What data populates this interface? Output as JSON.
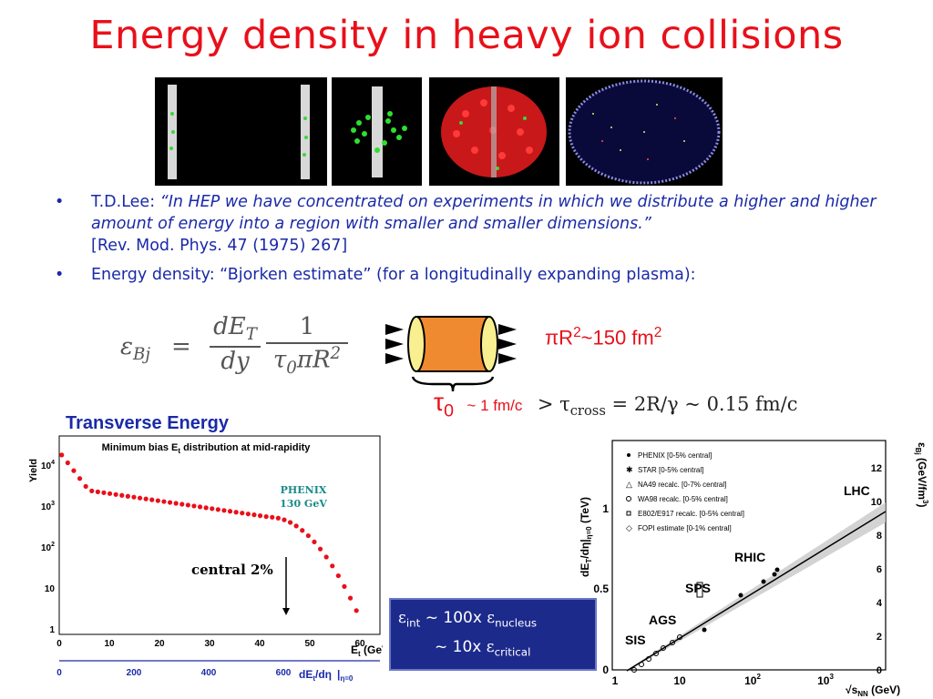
{
  "title": "Energy density in heavy ion collisions",
  "bullets": {
    "b1_prefix": "T.D.Lee: ",
    "b1_quote": "“In HEP we have concentrated on experiments in which we distribute a higher and higher amount of energy into a region with smaller and smaller dimensions.”",
    "b1_ref": "[Rev. Mod. Phys. 47 (1975) 267]",
    "b2": "Energy density: “Bjorken estimate” (for a longitudinally expanding plasma):"
  },
  "bullet_char": "•",
  "formula": {
    "lhs": "ε",
    "lhs_sub": "Bj",
    "eq": "=",
    "num1": "dE",
    "num1_sub": "T",
    "den1": "dy",
    "num2": "1",
    "den2": "τ",
    "den2_sub": "0",
    "den2_rest": "πR",
    "den2_sup": "2"
  },
  "cylinder": {
    "area_prefix": "πR",
    "area_sup": "2",
    "area_rest": "~150 fm",
    "area_sup2": "2",
    "tau": "τ",
    "tau_sub": "0",
    "tau_val": "~ 1 fm/c",
    "cross_gt": "> τ",
    "cross_sub": "cross",
    "cross_rest": " = 2R/γ ~ 0.15 fm/c"
  },
  "left_plot": {
    "section_label": "Transverse Energy",
    "plot_title": "Minimum bias E",
    "plot_title_sub": "t",
    "plot_title_rest": " distribution at mid-rapidity",
    "ylabel": "Yield",
    "xlabel": "E",
    "xlabel_sub": "t",
    "xlabel_rest": " (GeV)",
    "xlabel2": "dE",
    "xlabel2_sub": "t",
    "xlabel2_rest": "/dη",
    "xlabel2_cond": "|",
    "xlabel2_cond_sub": "η=0",
    "legend1": "PHENIX",
    "legend2": "130 GeV",
    "annotation": "central 2%",
    "xticks": [
      "0",
      "10",
      "20",
      "30",
      "40",
      "50",
      "60"
    ],
    "xticks2": [
      "0",
      "200",
      "400",
      "600"
    ],
    "yticks": [
      "1",
      "10",
      "10",
      "10",
      "10"
    ],
    "yticks_sup": [
      "",
      "",
      "2",
      "3",
      "4"
    ],
    "color_points": "#e8101a"
  },
  "right_plot": {
    "ylabel": "dE",
    "ylabel_sub": "T",
    "ylabel_rest": "/dη|",
    "ylabel_cond": "η=0",
    "ylabel_unit": " (TeV)",
    "y2label": "ε",
    "y2label_sub": "Bj",
    "y2label_rest": " (GeV/fm",
    "y2label_sup": "3",
    "y2label_end": ")",
    "xlabel_s": "√s",
    "xlabel_sub": "NN",
    "xlabel_rest": " (GeV)",
    "legend": [
      "PHENIX [0-5% central]",
      "STAR [0-5% central]",
      "NA49 recalc. [0-7% central]",
      "WA98 recalc. [0-5% central]",
      "E802/E917 recalc. [0-5% central]",
      "FOPI estimate [0-1% central]"
    ],
    "labels": [
      "LHC",
      "RHIC",
      "SPS",
      "AGS",
      "SIS"
    ],
    "xticks": [
      "1",
      "10",
      "10",
      "10"
    ],
    "xticks_sup": [
      "",
      "",
      "2",
      "3"
    ],
    "yticks_left": [
      "0",
      "0.5",
      "1"
    ],
    "yticks_right": [
      "0",
      "2",
      "4",
      "6",
      "8",
      "10",
      "12"
    ]
  },
  "box": {
    "l1a": "ε",
    "l1_sub": "int",
    "l1b": " ~ 100x ",
    "l1c": "ε",
    "l1_sub2": "nucleus",
    "l2a": "~  10x ",
    "l2b": "ε",
    "l2_sub": "critical"
  }
}
